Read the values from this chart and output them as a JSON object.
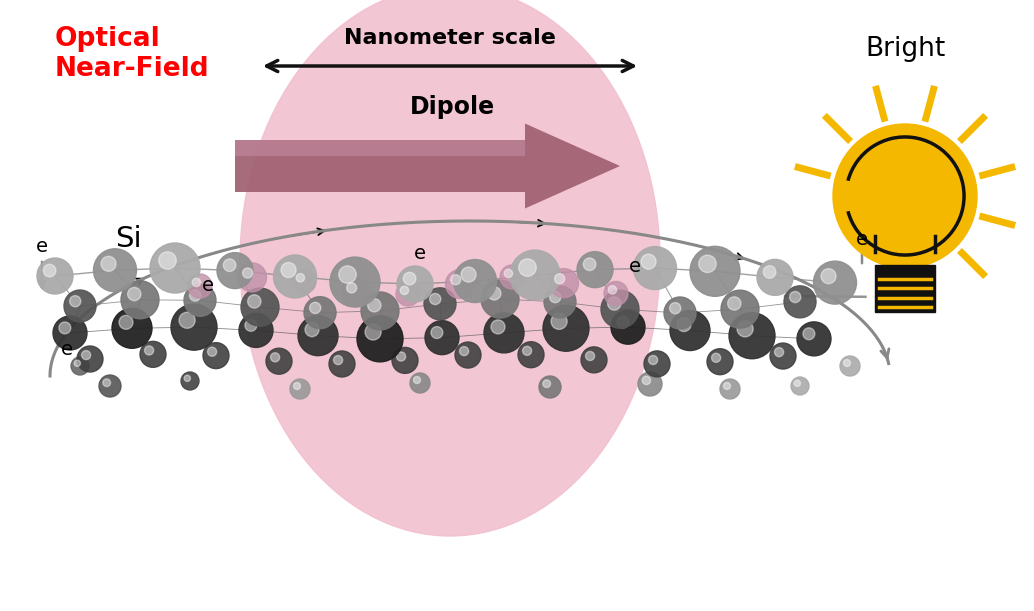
{
  "bg_color": "#ffffff",
  "optical_text": "Optical\nNear-Field",
  "optical_text_color": "#ff0000",
  "si_text": "Si",
  "bright_text": "Bright",
  "nanometer_text": "Nanometer scale",
  "dipole_text": "Dipole",
  "e_label": "e",
  "pink_color": "#f2c0d0",
  "dipole_arrow_color": "#a06070",
  "molecule_gray_light": "#aaaaaa",
  "molecule_gray": "#888888",
  "molecule_dark": "#222222",
  "molecule_pink": "#c090a8",
  "bulb_yellow": "#f5b800",
  "bulb_black": "#111111",
  "arrow_gray": "#888888",
  "nanometer_arrow_color": "#111111"
}
